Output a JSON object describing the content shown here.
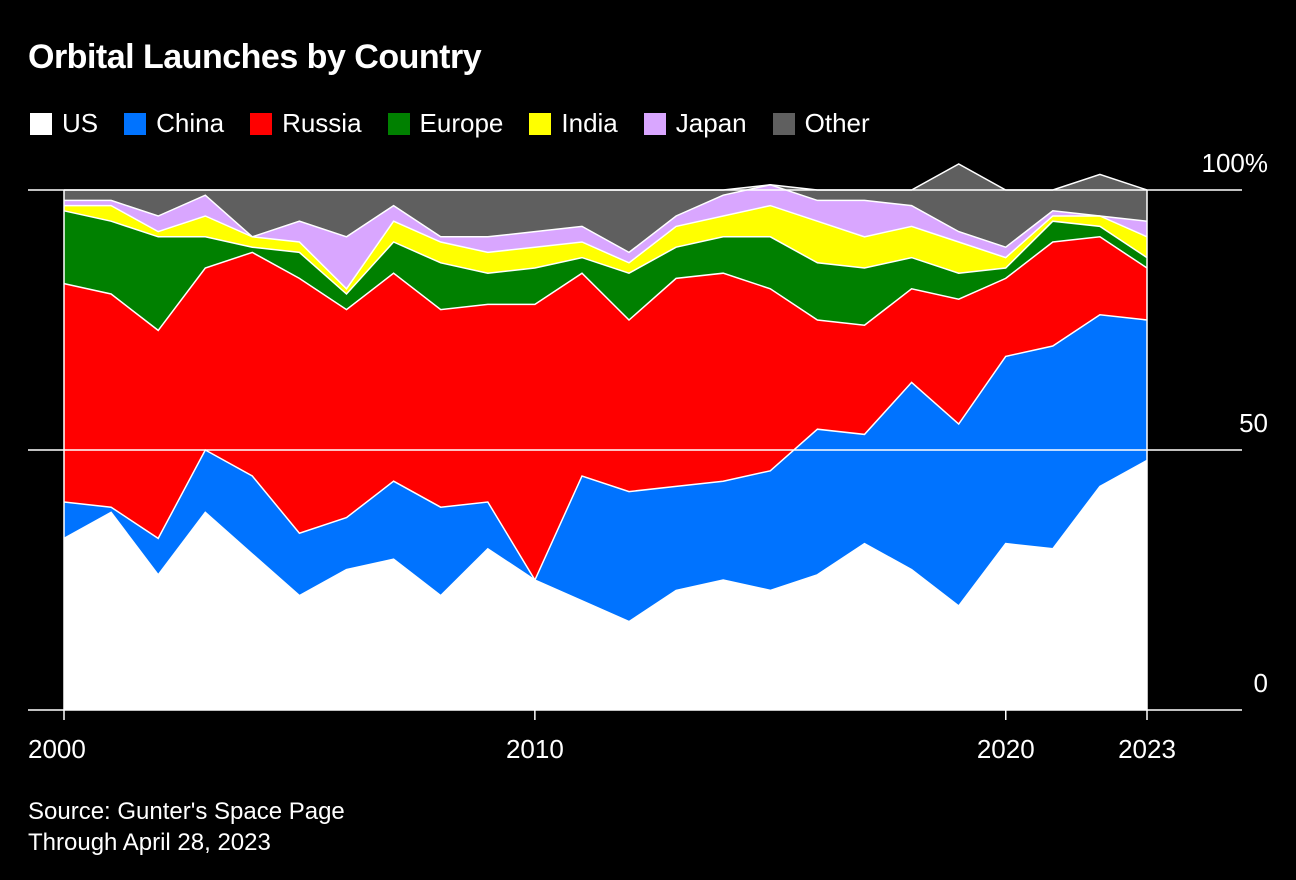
{
  "chart_data": {
    "type": "area",
    "stacked": true,
    "normalized_percent": true,
    "title": "Orbital Launches by Country",
    "xlabel": "",
    "ylabel": "",
    "x": [
      2000,
      2001,
      2002,
      2003,
      2004,
      2005,
      2006,
      2007,
      2008,
      2009,
      2010,
      2011,
      2012,
      2013,
      2014,
      2015,
      2016,
      2017,
      2018,
      2019,
      2020,
      2021,
      2022,
      2023
    ],
    "xlim": [
      2000,
      2023
    ],
    "ylim": [
      0,
      100
    ],
    "x_ticks": [
      {
        "value": 2000,
        "label": "2000"
      },
      {
        "value": 2010,
        "label": "2010"
      },
      {
        "value": 2020,
        "label": "2020"
      },
      {
        "value": 2023,
        "label": "2023"
      }
    ],
    "y_ticks": [
      {
        "value": 100,
        "label": "100%"
      },
      {
        "value": 50,
        "label": "50"
      },
      {
        "value": 0,
        "label": "0"
      }
    ],
    "grid": true,
    "legend_position": "top-left",
    "series": [
      {
        "name": "US",
        "color": "#ffffff",
        "values": [
          33,
          38,
          26,
          38,
          30,
          22,
          27,
          29,
          22,
          31,
          25,
          21,
          17,
          23,
          25,
          23,
          26,
          32,
          27,
          20,
          32,
          31,
          43,
          48
        ]
      },
      {
        "name": "China",
        "color": "#0073ff",
        "values": [
          7,
          1,
          7,
          12,
          15,
          12,
          10,
          15,
          17,
          9,
          0,
          24,
          25,
          20,
          19,
          23,
          28,
          21,
          36,
          35,
          36,
          39,
          33,
          27
        ]
      },
      {
        "name": "Russia",
        "color": "#ff0000",
        "values": [
          42,
          41,
          40,
          35,
          43,
          49,
          40,
          40,
          38,
          38,
          53,
          39,
          33,
          40,
          40,
          35,
          21,
          21,
          18,
          24,
          15,
          20,
          15,
          10
        ]
      },
      {
        "name": "Europe",
        "color": "#008000",
        "values": [
          14,
          14,
          18,
          6,
          1,
          5,
          3,
          6,
          9,
          6,
          7,
          3,
          9,
          6,
          7,
          10,
          11,
          11,
          6,
          5,
          2,
          4,
          2,
          2
        ]
      },
      {
        "name": "India",
        "color": "#ffff00",
        "values": [
          1,
          3,
          1,
          4,
          2,
          2,
          1,
          4,
          4,
          4,
          4,
          3,
          2,
          4,
          4,
          6,
          8,
          6,
          6,
          6,
          2,
          1,
          2,
          4
        ]
      },
      {
        "name": "Japan",
        "color": "#d9a6ff",
        "values": [
          1,
          1,
          3,
          4,
          0,
          4,
          10,
          3,
          1,
          3,
          3,
          3,
          2,
          2,
          4,
          4,
          4,
          7,
          4,
          2,
          2,
          1,
          0,
          3
        ]
      },
      {
        "name": "Other",
        "color": "#5f5f5f",
        "values": [
          2,
          2,
          5,
          1,
          9,
          6,
          9,
          3,
          9,
          9,
          8,
          7,
          12,
          5,
          1,
          0,
          2,
          2,
          3,
          13,
          11,
          4,
          8,
          6
        ]
      }
    ],
    "legend_labels": [
      "US",
      "China",
      "Russia",
      "Europe",
      "India",
      "Japan",
      "Other"
    ],
    "colors": {
      "background": "#000000",
      "text": "#ffffff",
      "axis": "#ffffff"
    }
  },
  "footer": {
    "source": "Source: Gunter's Space Page",
    "note": "Through April 28, 2023"
  }
}
